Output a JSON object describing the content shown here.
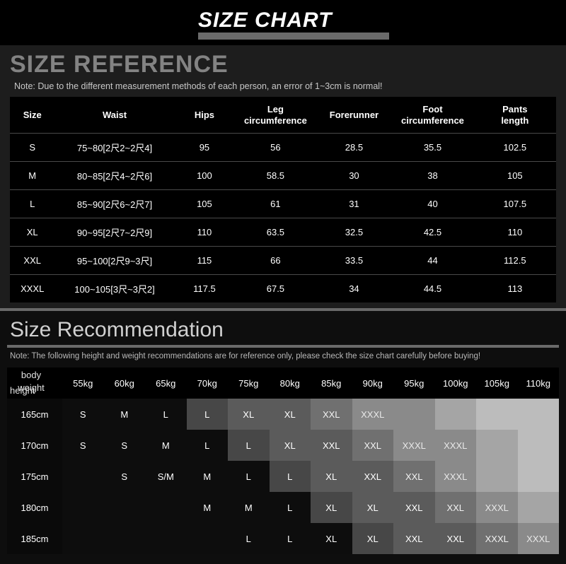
{
  "title": "SIZE CHART",
  "reference": {
    "heading": "SIZE REFERENCE",
    "note": "Note: Due to the different measurement methods of each person, an error of 1~3cm is normal!",
    "columns": [
      "Size",
      "Waist",
      "Hips",
      "Leg circumference",
      "Forerunner",
      "Foot circumference",
      "Pants length"
    ],
    "rows": [
      [
        "S",
        "75~80[2尺2~2尺4]",
        "95",
        "56",
        "28.5",
        "35.5",
        "102.5"
      ],
      [
        "M",
        "80~85[2尺4~2尺6]",
        "100",
        "58.5",
        "30",
        "38",
        "105"
      ],
      [
        "L",
        "85~90[2尺6~2尺7]",
        "105",
        "61",
        "31",
        "40",
        "107.5"
      ],
      [
        "XL",
        "90~95[2尺7~2尺9]",
        "110",
        "63.5",
        "32.5",
        "42.5",
        "110"
      ],
      [
        "XXL",
        "95~100[2尺9~3尺]",
        "115",
        "66",
        "33.5",
        "44",
        "112.5"
      ],
      [
        "XXXL",
        "100~105[3尺~3尺2]",
        "117.5",
        "67.5",
        "34",
        "44.5",
        "113"
      ]
    ]
  },
  "recommendation": {
    "heading": "Size Recommendation",
    "note": "Note: The following height and weight recommendations are for reference only, please check the size chart carefully before buying!",
    "cornerTop": "body weight",
    "cornerBottom": "height",
    "weights": [
      "55kg",
      "60kg",
      "65kg",
      "70kg",
      "75kg",
      "80kg",
      "85kg",
      "90kg",
      "95kg",
      "100kg",
      "105kg",
      "110kg"
    ],
    "heights": [
      "165cm",
      "170cm",
      "175cm",
      "180cm",
      "185cm"
    ],
    "cells": [
      [
        "S",
        "M",
        "L",
        "L",
        "XL",
        "XL",
        "XXL",
        "XXXL",
        "",
        "",
        "",
        ""
      ],
      [
        "S",
        "S",
        "M",
        "L",
        "L",
        "XL",
        "XXL",
        "XXL",
        "XXXL",
        "XXXL",
        "",
        ""
      ],
      [
        "",
        "S",
        "S/M",
        "M",
        "L",
        "L",
        "XL",
        "XXL",
        "XXL",
        "XXXL",
        "",
        ""
      ],
      [
        "",
        "",
        "",
        "M",
        "M",
        "L",
        "XL",
        "XL",
        "XXL",
        "XXL",
        "XXXL",
        ""
      ],
      [
        "",
        "",
        "",
        "",
        "L",
        "L",
        "XL",
        "XL",
        "XXL",
        "XXL",
        "XXXL",
        "XXXL"
      ]
    ],
    "shades": [
      [
        0,
        0,
        0,
        1,
        2,
        2,
        3,
        4,
        4,
        5,
        6,
        6
      ],
      [
        0,
        0,
        0,
        0,
        1,
        2,
        2,
        3,
        4,
        4,
        5,
        6
      ],
      [
        0,
        0,
        0,
        0,
        0,
        1,
        2,
        2,
        3,
        4,
        5,
        6
      ],
      [
        0,
        0,
        0,
        0,
        0,
        0,
        1,
        2,
        2,
        3,
        4,
        5
      ],
      [
        0,
        0,
        0,
        0,
        0,
        0,
        0,
        1,
        2,
        2,
        3,
        4
      ]
    ],
    "shadeColors": {
      "0": "#0d0d0d",
      "1": "#474747",
      "2": "#5b5b5b",
      "3": "#707070",
      "4": "#8a8a8a",
      "5": "#a5a5a5",
      "6": "#bcbcbc",
      "text0": "#ffffff",
      "text1": "#ffffff",
      "text2": "#ffffff",
      "text3": "#f2f2f2",
      "text4": "#e8e8e8",
      "text5": "#101010",
      "text6": "#101010"
    }
  }
}
